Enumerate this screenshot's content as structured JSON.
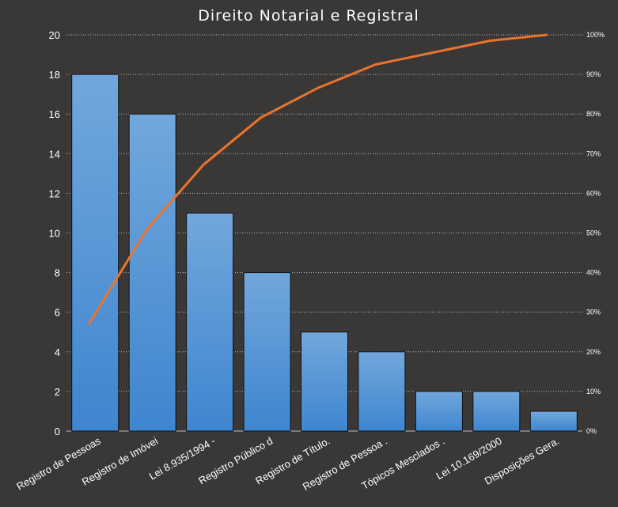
{
  "chart_data": {
    "type": "bar",
    "title": "Direito Notarial e Registral",
    "categories": [
      "Registro de Pessoas",
      "Registro de Imóvei",
      "Lei 8.935/1994 -",
      "Registro Público d",
      "Registro de Título.",
      "Registro de Pessoa .",
      "Tópicos Mesclados .",
      "Lei 10.169/2000",
      "Disposições Gera."
    ],
    "series": [
      {
        "type": "bar",
        "values": [
          18,
          16,
          11,
          8,
          5,
          4,
          2,
          2,
          1
        ],
        "color": "#4f92d6"
      },
      {
        "type": "line",
        "axis": "right",
        "values": [
          26.9,
          50.7,
          67.2,
          79.1,
          86.6,
          92.5,
          95.5,
          98.5,
          100
        ],
        "color": "#e9742c"
      }
    ],
    "y_left": {
      "min": 0,
      "max": 20,
      "ticks": [
        "0",
        "2",
        "4",
        "6",
        "8",
        "10",
        "12",
        "14",
        "16",
        "18",
        "20"
      ]
    },
    "y_right": {
      "min": 0,
      "max": 100,
      "ticks": [
        "0%",
        "10%",
        "20%",
        "30%",
        "40%",
        "50%",
        "60%",
        "70%",
        "80%",
        "90%",
        "100%"
      ]
    },
    "grid": true,
    "background": "#3a3836",
    "grid_color": "#bdbdbd"
  }
}
